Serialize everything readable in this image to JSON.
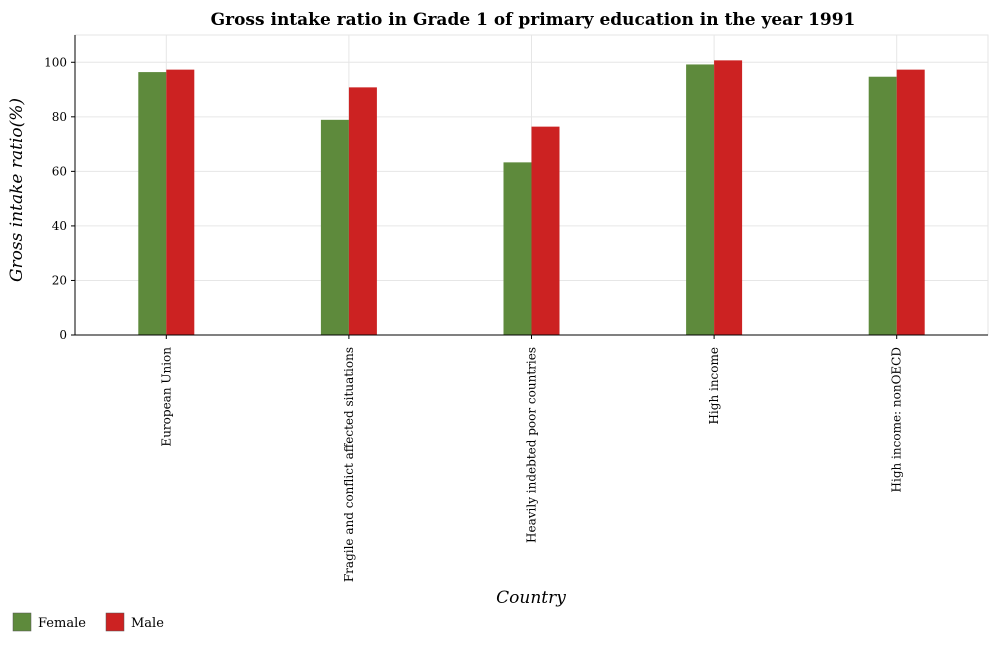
{
  "chart_data": {
    "type": "bar",
    "title": "Gross intake ratio in Grade 1 of primary education in the year 1991",
    "xlabel": "Country",
    "ylabel": "Gross intake ratio(%)",
    "ylim": [
      0,
      110
    ],
    "yticks": [
      0,
      20,
      40,
      60,
      80,
      100
    ],
    "categories": [
      "European Union",
      "Fragile and conflict affected situations",
      "Heavily indebted poor countries",
      "High income",
      "High income: nonOECD"
    ],
    "series": [
      {
        "name": "Female",
        "color": "#5e8a3c",
        "values": [
          96.4,
          78.9,
          63.3,
          99.2,
          94.7
        ]
      },
      {
        "name": "Male",
        "color": "#cc2222",
        "values": [
          97.3,
          90.8,
          76.4,
          100.7,
          97.3
        ]
      }
    ],
    "grid": true,
    "legend_position": "bottom-left"
  }
}
